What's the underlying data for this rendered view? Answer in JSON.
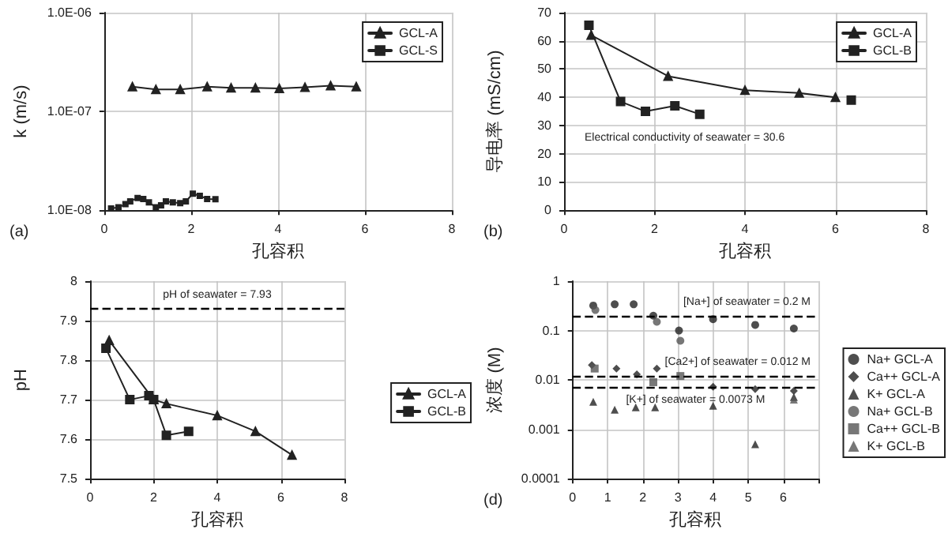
{
  "chart_data": [
    {
      "type": "line",
      "xlabel": "孔容积",
      "ylabel": "k (m/s)",
      "annotations": [
        "(a)"
      ],
      "log": "y",
      "grid": true,
      "legend": "top right",
      "line_style": "solid",
      "xlim": [
        0,
        8
      ],
      "xticks": [
        0,
        2,
        4,
        6,
        8
      ],
      "ylim": [
        1e-08,
        1e-06
      ],
      "yticks": [
        {
          "value": 1e-08,
          "label": "1.0E-08"
        },
        {
          "value": 1e-07,
          "label": "1.0E-07"
        },
        {
          "value": 1e-06,
          "label": "1.0E-06"
        }
      ],
      "series": [
        {
          "name": "GCL-A",
          "color": "#222222",
          "marker": "triangle",
          "x": [
            0.65,
            1.19,
            1.75,
            2.37,
            2.92,
            3.48,
            4.03,
            4.62,
            5.21,
            5.8
          ],
          "values": [
            1.78e-07,
            1.67e-07,
            1.67e-07,
            1.78e-07,
            1.73e-07,
            1.73e-07,
            1.71e-07,
            1.76e-07,
            1.82e-07,
            1.78e-07
          ]
        },
        {
          "name": "GCL-S",
          "color": "#222222",
          "marker": "square",
          "x": [
            0.16,
            0.33,
            0.49,
            0.6,
            0.77,
            0.9,
            1.03,
            1.19,
            1.31,
            1.42,
            1.58,
            1.75,
            1.88,
            2.04,
            2.2,
            2.37,
            2.56
          ],
          "values": [
            1.04e-08,
            1.07e-08,
            1.15e-08,
            1.23e-08,
            1.33e-08,
            1.3e-08,
            1.2e-08,
            1.07e-08,
            1.12e-08,
            1.23e-08,
            1.2e-08,
            1.18e-08,
            1.23e-08,
            1.47e-08,
            1.4e-08,
            1.3e-08,
            1.29e-08
          ]
        }
      ]
    },
    {
      "type": "line",
      "xlabel": "孔容积",
      "ylabel": "导电率 (mS/cm)",
      "annotations": [
        "(b)",
        "Electrical conductivity of seawater = 30.6"
      ],
      "grid": true,
      "legend": "top right",
      "line_style": "solid",
      "xlim": [
        0,
        8
      ],
      "xticks": [
        0,
        2,
        4,
        6,
        8
      ],
      "ylim": [
        0,
        70
      ],
      "yticks": [
        0,
        10,
        20,
        30,
        40,
        50,
        60,
        70
      ],
      "series": [
        {
          "name": "GCL-A",
          "color": "#222222",
          "marker": "triangle",
          "x": [
            0.6,
            2.3,
            4.0,
            5.2,
            6.0
          ],
          "values": [
            62,
            47.5,
            42.5,
            41.5,
            40
          ]
        },
        {
          "name": "GCL-B",
          "color": "#222222",
          "marker": "square",
          "x": [
            0.55,
            1.25,
            1.8,
            2.45,
            3.0,
            4.5,
            6.35
          ],
          "values": [
            65.5,
            38.5,
            35,
            37,
            34,
            null,
            39
          ]
        }
      ]
    },
    {
      "type": "line",
      "xlabel": "孔容积",
      "ylabel": "pH",
      "grid": true,
      "legend": "right",
      "line_style": "solid",
      "xlim": [
        0,
        8
      ],
      "xticks": [
        0,
        2,
        4,
        6,
        8
      ],
      "ylim": [
        7.5,
        8
      ],
      "yticks": [
        7.5,
        7.6,
        7.7,
        7.8,
        7.9,
        8
      ],
      "ref_lines": [
        {
          "axis": "y",
          "value": 7.93,
          "label": "pH of seawater = 7.93",
          "line_style": "dashed"
        }
      ],
      "series": [
        {
          "name": "GCL-A",
          "color": "#222222",
          "marker": "triangle",
          "x": [
            0.6,
            2.0,
            2.4,
            4.0,
            5.2,
            6.35
          ],
          "values": [
            7.85,
            7.7,
            7.69,
            7.66,
            7.62,
            7.56
          ]
        },
        {
          "name": "GCL-B",
          "color": "#222222",
          "marker": "square",
          "x": [
            0.5,
            1.25,
            1.85,
            2.0,
            2.4,
            3.1
          ],
          "values": [
            7.83,
            7.7,
            7.71,
            7.7,
            7.61,
            7.62
          ]
        }
      ]
    },
    {
      "type": "scatter",
      "xlabel": "孔容积",
      "ylabel": "浓度 (M)",
      "annotations": [
        "(d)"
      ],
      "log": "y",
      "grid": true,
      "legend": "right",
      "xlim": [
        0,
        7
      ],
      "xticks": [
        0,
        1,
        2,
        3,
        4,
        5,
        6,
        {
          "value": 7,
          "label": null
        }
      ],
      "ylim": [
        0.0001,
        1
      ],
      "yticks": [
        0.0001,
        0.001,
        0.01,
        0.1,
        1
      ],
      "ref_lines": [
        {
          "axis": "y",
          "value": 0.2,
          "label": "[Na+] of seawater = 0.2 M",
          "line_style": "dashed"
        },
        {
          "axis": "y",
          "value": 0.012,
          "label": "[Ca2+] of seawater = 0.012 M",
          "line_style": "dashed"
        },
        {
          "axis": "y",
          "value": 0.0073,
          "label": "[K+] of seawater = 0.0073 M",
          "line_style": "dashed"
        }
      ],
      "series": [
        {
          "name": "Na+ GCL-A",
          "color": "#222222",
          "marker": "circle",
          "x": [
            0.59,
            1.2,
            1.74,
            2.3,
            3.03,
            4.0,
            5.2,
            6.3
          ],
          "values": [
            0.32,
            0.34,
            0.34,
            0.2,
            0.1,
            0.17,
            0.13,
            0.11
          ]
        },
        {
          "name": "Ca++ GCL-A",
          "color": "#222222",
          "marker": "diamond",
          "x": [
            0.55,
            1.25,
            1.83,
            2.4,
            4.0,
            5.2,
            6.3
          ],
          "values": [
            0.02,
            0.017,
            0.013,
            0.017,
            0.0073,
            0.0065,
            0.006
          ]
        },
        {
          "name": "K+ GCL-A",
          "color": "#222222",
          "marker": "triangle",
          "x": [
            0.59,
            1.2,
            1.8,
            2.35,
            4.0,
            5.2,
            6.3
          ],
          "values": [
            0.0036,
            0.0025,
            0.0028,
            0.0028,
            0.003,
            0.0005,
            0.0045
          ]
        },
        {
          "name": "Na+ GCL-B",
          "color": "#555555",
          "marker": "circle",
          "x": [
            0.65,
            2.4,
            3.07
          ],
          "values": [
            0.26,
            0.15,
            0.062
          ]
        },
        {
          "name": "Ca++ GCL-B",
          "color": "#555555",
          "marker": "square",
          "x": [
            0.63,
            2.3,
            3.07
          ],
          "values": [
            0.017,
            0.009,
            0.012
          ]
        },
        {
          "name": "K+ GCL-B",
          "color": "#555555",
          "marker": "triangle",
          "x": [
            6.3
          ],
          "values": [
            0.004
          ]
        }
      ]
    }
  ]
}
